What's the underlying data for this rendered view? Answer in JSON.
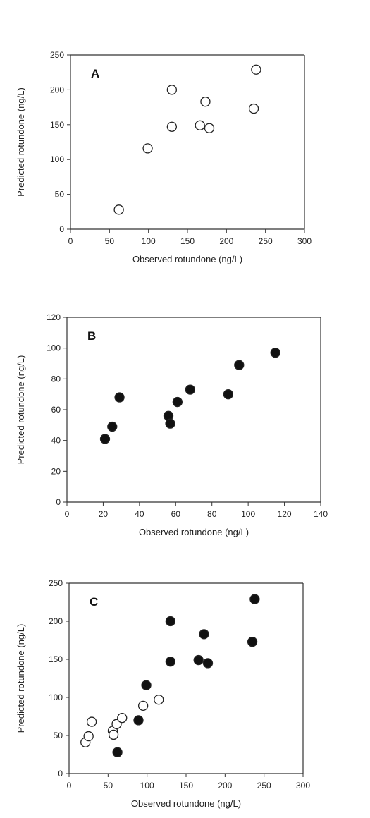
{
  "chart_data": [
    {
      "type": "scatter",
      "panel_label": "A",
      "xlabel": "Observed rotundone (ng/L)",
      "ylabel": "Predicted rotundone (ng/L)",
      "xlim": [
        0,
        300
      ],
      "ylim": [
        0,
        250
      ],
      "xticks": [
        0,
        50,
        100,
        150,
        200,
        250,
        300
      ],
      "yticks": [
        0,
        50,
        100,
        150,
        200,
        250
      ],
      "grid": false,
      "series": [
        {
          "marker": "open-circle",
          "points": [
            {
              "x": 62,
              "y": 28
            },
            {
              "x": 99,
              "y": 116
            },
            {
              "x": 130,
              "y": 200
            },
            {
              "x": 130,
              "y": 147
            },
            {
              "x": 166,
              "y": 149
            },
            {
              "x": 173,
              "y": 183
            },
            {
              "x": 178,
              "y": 145
            },
            {
              "x": 235,
              "y": 173
            },
            {
              "x": 238,
              "y": 229
            }
          ]
        }
      ]
    },
    {
      "type": "scatter",
      "panel_label": "B",
      "xlabel": "Observed rotundone (ng/L)",
      "ylabel": "Predicted rotundone (ng/L)",
      "xlim": [
        0,
        140
      ],
      "ylim": [
        0,
        120
      ],
      "xticks": [
        0,
        20,
        40,
        60,
        80,
        100,
        120,
        140
      ],
      "yticks": [
        0,
        20,
        40,
        60,
        80,
        100,
        120
      ],
      "grid": false,
      "series": [
        {
          "marker": "filled-circle",
          "points": [
            {
              "x": 21,
              "y": 41
            },
            {
              "x": 25,
              "y": 49
            },
            {
              "x": 29,
              "y": 68
            },
            {
              "x": 56,
              "y": 56
            },
            {
              "x": 57,
              "y": 51
            },
            {
              "x": 61,
              "y": 65
            },
            {
              "x": 68,
              "y": 73
            },
            {
              "x": 89,
              "y": 70
            },
            {
              "x": 95,
              "y": 89
            },
            {
              "x": 115,
              "y": 97
            }
          ]
        }
      ]
    },
    {
      "type": "scatter",
      "panel_label": "C",
      "xlabel": "Observed rotundone (ng/L)",
      "ylabel": "Predicted rotundone (ng/L)",
      "xlim": [
        0,
        300
      ],
      "ylim": [
        0,
        250
      ],
      "xticks": [
        0,
        50,
        100,
        150,
        200,
        250,
        300
      ],
      "yticks": [
        0,
        50,
        100,
        150,
        200,
        250
      ],
      "grid": false,
      "series": [
        {
          "marker": "open-circle",
          "points": [
            {
              "x": 21,
              "y": 41
            },
            {
              "x": 25,
              "y": 49
            },
            {
              "x": 29,
              "y": 68
            },
            {
              "x": 56,
              "y": 56
            },
            {
              "x": 57,
              "y": 51
            },
            {
              "x": 61,
              "y": 65
            },
            {
              "x": 68,
              "y": 73
            },
            {
              "x": 95,
              "y": 89
            },
            {
              "x": 115,
              "y": 97
            }
          ]
        },
        {
          "marker": "filled-circle",
          "points": [
            {
              "x": 62,
              "y": 28
            },
            {
              "x": 89,
              "y": 70
            },
            {
              "x": 99,
              "y": 116
            },
            {
              "x": 130,
              "y": 200
            },
            {
              "x": 130,
              "y": 147
            },
            {
              "x": 166,
              "y": 149
            },
            {
              "x": 173,
              "y": 183
            },
            {
              "x": 178,
              "y": 145
            },
            {
              "x": 235,
              "y": 173
            },
            {
              "x": 238,
              "y": 229
            }
          ]
        }
      ]
    }
  ],
  "colors": {
    "axis": "#333333",
    "marker_stroke": "#222222",
    "marker_fill_filled": "#111111",
    "marker_fill_open": "#ffffff"
  }
}
